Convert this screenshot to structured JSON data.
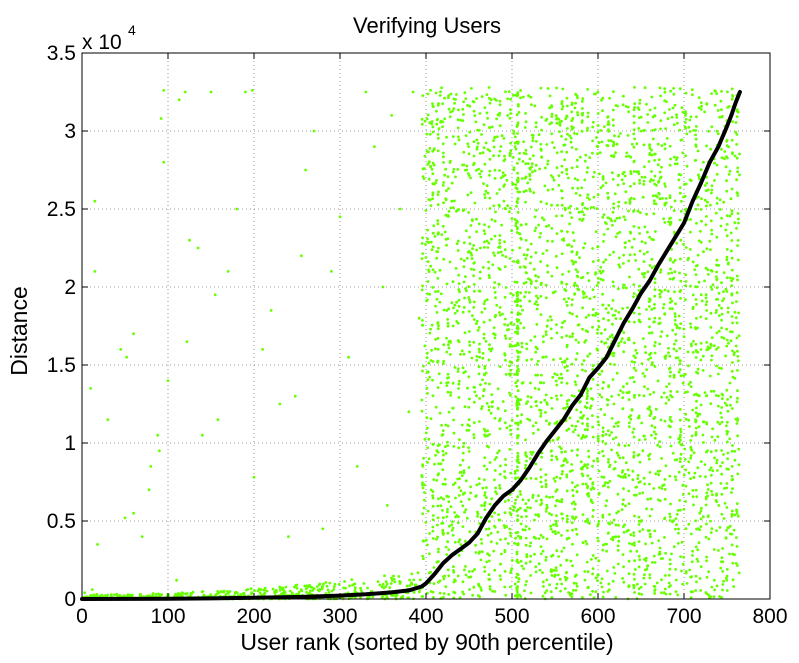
{
  "chart_data": {
    "type": "scatter",
    "title": "Verifying Users",
    "xlabel": "User rank (sorted by 90th percentile)",
    "ylabel": "Distance",
    "xlim": [
      0,
      800
    ],
    "ylim": [
      0,
      35000
    ],
    "x_ticks": [
      0,
      100,
      200,
      300,
      400,
      500,
      600,
      700,
      800
    ],
    "y_ticks": [
      0,
      5000,
      10000,
      15000,
      20000,
      25000,
      30000,
      35000
    ],
    "y_tick_labels": [
      "0",
      "0.5",
      "1",
      "1.5",
      "2",
      "2.5",
      "3",
      "3.5"
    ],
    "y_exponent_base": "x 10",
    "y_exponent_power": "4",
    "grid": true,
    "colors": {
      "scatter": "#66ff00",
      "curve": "#000000"
    },
    "series": [
      {
        "kind": "scatter",
        "description_points": [
          [
            3,
            400
          ],
          [
            15,
            25500
          ],
          [
            15,
            21000
          ],
          [
            10,
            13500
          ],
          [
            18,
            3500
          ],
          [
            12,
            600
          ],
          [
            30,
            11500
          ],
          [
            45,
            16000
          ],
          [
            50,
            5200
          ],
          [
            52,
            15500
          ],
          [
            60,
            5500
          ],
          [
            60,
            17000
          ],
          [
            70,
            4000
          ],
          [
            78,
            7000
          ],
          [
            80,
            8500
          ],
          [
            88,
            10500
          ],
          [
            90,
            9500
          ],
          [
            92,
            30800
          ],
          [
            95,
            32600
          ],
          [
            95,
            28000
          ],
          [
            100,
            14000
          ],
          [
            110,
            1200
          ],
          [
            113,
            32000
          ],
          [
            120,
            32500
          ],
          [
            122,
            16500
          ],
          [
            125,
            23000
          ],
          [
            135,
            22500
          ],
          [
            140,
            10500
          ],
          [
            150,
            32500
          ],
          [
            155,
            19500
          ],
          [
            158,
            11500
          ],
          [
            170,
            21000
          ],
          [
            180,
            25000
          ],
          [
            190,
            32500
          ],
          [
            198,
            32600
          ],
          [
            200,
            7800
          ],
          [
            210,
            16000
          ],
          [
            220,
            18500
          ],
          [
            230,
            12500
          ],
          [
            240,
            4000
          ],
          [
            248,
            13000
          ],
          [
            255,
            22000
          ],
          [
            260,
            27500
          ],
          [
            270,
            30000
          ],
          [
            280,
            4500
          ],
          [
            290,
            21000
          ],
          [
            300,
            24500
          ],
          [
            310,
            15500
          ],
          [
            320,
            8500
          ],
          [
            330,
            32500
          ],
          [
            340,
            29000
          ],
          [
            350,
            20000
          ],
          [
            355,
            6000
          ],
          [
            360,
            31000
          ],
          [
            370,
            25000
          ],
          [
            380,
            12000
          ],
          [
            385,
            32500
          ],
          [
            392,
            18000
          ]
        ],
        "dense_band": {
          "x_start": 395,
          "x_end": 765,
          "y_min": 0,
          "y_max": 32800
        },
        "low_band": {
          "x_start": 0,
          "x_end": 395,
          "y_min": 0,
          "y_max": 1500
        }
      },
      {
        "kind": "line",
        "x": [
          0,
          50,
          100,
          150,
          200,
          250,
          300,
          330,
          360,
          380,
          395,
          400,
          410,
          420,
          430,
          440,
          450,
          460,
          470,
          480,
          490,
          500,
          510,
          520,
          530,
          540,
          550,
          560,
          570,
          580,
          590,
          600,
          610,
          620,
          630,
          640,
          650,
          660,
          670,
          680,
          690,
          700,
          710,
          720,
          730,
          740,
          750,
          755,
          760,
          765
        ],
        "y": [
          0,
          5,
          15,
          40,
          80,
          130,
          220,
          300,
          420,
          550,
          800,
          1000,
          1600,
          2300,
          2800,
          3200,
          3600,
          4200,
          5200,
          6000,
          6600,
          7000,
          7600,
          8400,
          9300,
          10100,
          10800,
          11500,
          12400,
          13100,
          14200,
          14800,
          15500,
          16600,
          17700,
          18600,
          19600,
          20400,
          21400,
          22300,
          23200,
          24100,
          25500,
          26700,
          28000,
          29000,
          30300,
          31000,
          31800,
          32500
        ]
      }
    ]
  }
}
